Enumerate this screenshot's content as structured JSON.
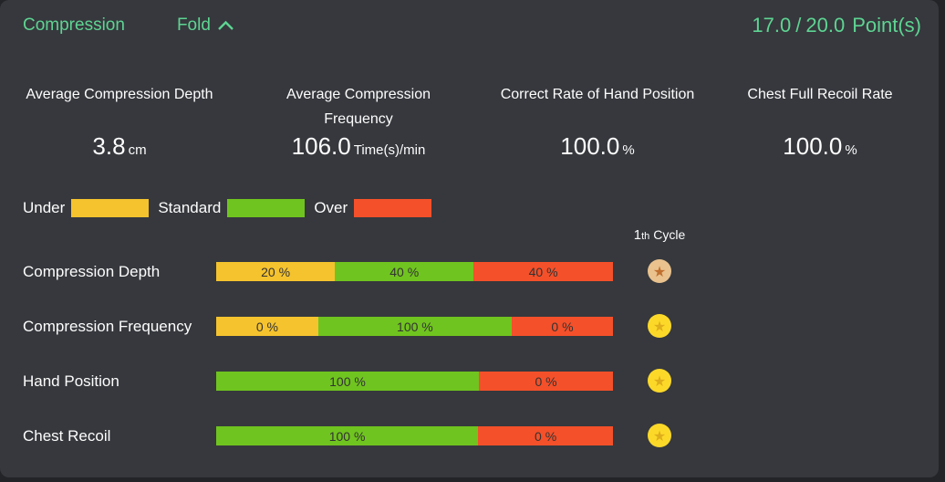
{
  "colors": {
    "page_bg": "#222428",
    "panel_bg": "#36383d",
    "accent_green": "#5ed492",
    "under": "#f5c32e",
    "standard": "#70c41f",
    "over": "#f4502a",
    "gold": "#fcd929",
    "gold_star": "#dfae1b",
    "bronze": "#e9c28e",
    "bronze_star": "#c0702f",
    "bar_text": "#333333"
  },
  "header": {
    "title": "Compression",
    "fold_label": "Fold",
    "score": "17.0",
    "separator": "/",
    "total": "20.0",
    "unit": "Point(s)"
  },
  "stats": [
    {
      "title": "Average Compression Depth",
      "value": "3.8",
      "unit": "cm"
    },
    {
      "title": "Average Compression Frequency",
      "value": "106.0",
      "unit": "Time(s)/min"
    },
    {
      "title": "Correct Rate of Hand Position",
      "value": "100.0",
      "unit": "%"
    },
    {
      "title": "Chest Full Recoil Rate",
      "value": "100.0",
      "unit": "%"
    }
  ],
  "legend": [
    {
      "band": "under",
      "label": "Under"
    },
    {
      "band": "standard",
      "label": "Standard"
    },
    {
      "band": "over",
      "label": "Over"
    }
  ],
  "cycle": {
    "number": "1",
    "ordinal": "th",
    "word": "Cycle"
  },
  "icons": {
    "medal_star_glyph": "★"
  },
  "rows": [
    {
      "label": "Compression Depth",
      "medal": "bronze",
      "segments": [
        {
          "band": "under",
          "label": "20 %",
          "value": 20,
          "display_weight": 126
        },
        {
          "band": "standard",
          "label": "40 %",
          "value": 40,
          "display_weight": 154
        },
        {
          "band": "over",
          "label": "40 %",
          "value": 40,
          "display_weight": 155
        }
      ]
    },
    {
      "label": "Compression Frequency",
      "medal": "gold",
      "segments": [
        {
          "band": "under",
          "label": "0 %",
          "value": 0,
          "display_weight": 110
        },
        {
          "band": "standard",
          "label": "100 %",
          "value": 100,
          "display_weight": 216
        },
        {
          "band": "over",
          "label": "0 %",
          "value": 0,
          "display_weight": 109
        }
      ]
    },
    {
      "label": "Hand Position",
      "medal": "gold",
      "segments": [
        {
          "band": "standard",
          "label": "100 %",
          "value": 100,
          "display_weight": 291
        },
        {
          "band": "over",
          "label": "0 %",
          "value": 0,
          "display_weight": 144
        }
      ]
    },
    {
      "label": "Chest Recoil",
      "medal": "gold",
      "segments": [
        {
          "band": "standard",
          "label": "100 %",
          "value": 100,
          "display_weight": 290
        },
        {
          "band": "over",
          "label": "0 %",
          "value": 0,
          "display_weight": 145
        }
      ]
    }
  ]
}
